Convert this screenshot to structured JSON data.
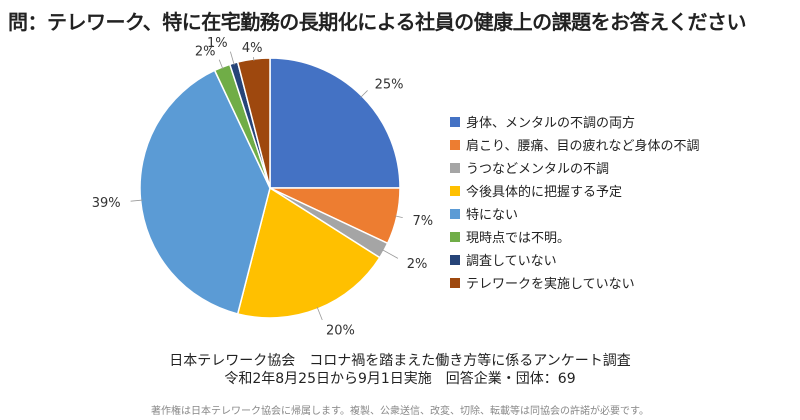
{
  "title": "問：テレワーク、特に在宅勤務の長期化による社員の健康上の課題をお答えください",
  "chart_data": {
    "type": "pie",
    "categories": [
      "身体、メンタルの不調の両方",
      "肩こり、腰痛、目の疲れなど身体の不調",
      "うつなどメンタルの不調",
      "今後具体的に把握する予定",
      "特にない",
      "現時点では不明。",
      "調査していない",
      "テレワークを実施していない"
    ],
    "values": [
      25,
      7,
      2,
      20,
      39,
      2,
      1,
      4
    ],
    "labels": [
      "25%",
      "7%",
      "2%",
      "20%",
      "39%",
      "2%",
      "1%",
      "4%"
    ],
    "colors": [
      "#4472C4",
      "#ED7D31",
      "#A5A5A5",
      "#FFC000",
      "#5B9BD5",
      "#70AD47",
      "#264478",
      "#9E480E"
    ],
    "legend_position": "right"
  },
  "source": {
    "line1": "日本テレワーク協会　コロナ禍を踏まえた働き方等に係るアンケート調査",
    "line2": "令和2年8月25日から9月1日実施　回答企業・団体：69"
  },
  "copyright": "著作権は日本テレワーク協会に帰属します。複製、公衆送信、改変、切除、転載等は同協会の許諾が必要です。"
}
